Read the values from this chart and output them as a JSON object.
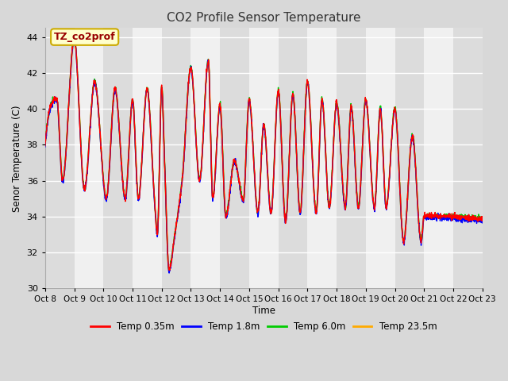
{
  "title": "CO2 Profile Sensor Temperature",
  "ylabel": "Senor Temperature (C)",
  "xlabel": "Time",
  "ylim": [
    30,
    44.5
  ],
  "xlim": [
    0,
    15
  ],
  "annotation_text": "TZ_co2prof",
  "annotation_bg": "#ffffcc",
  "annotation_border": "#ccaa00",
  "annotation_text_color": "#990000",
  "series_colors": [
    "#ff0000",
    "#0000ff",
    "#00cc00",
    "#ffaa00"
  ],
  "series_labels": [
    "Temp 0.35m",
    "Temp 1.8m",
    "Temp 6.0m",
    "Temp 23.5m"
  ],
  "tick_labels": [
    "Oct 8",
    "Oct 9",
    "Oct 10",
    "Oct 11",
    "Oct 12",
    "Oct 13",
    "Oct 14",
    "Oct 15",
    "Oct 16",
    "Oct 17",
    "Oct 18",
    "Oct 19",
    "Oct 20",
    "Oct 21",
    "Oct 22",
    "Oct 23"
  ],
  "tick_positions": [
    0,
    1,
    2,
    3,
    4,
    5,
    6,
    7,
    8,
    9,
    10,
    11,
    12,
    13,
    14,
    15
  ],
  "linewidth": 1.0,
  "band_colors": [
    "#dcdcdc",
    "#f0f0f0"
  ],
  "grid_color": "#ffffff",
  "fig_bg": "#d8d8d8",
  "plot_bg": "#e8e8e8"
}
